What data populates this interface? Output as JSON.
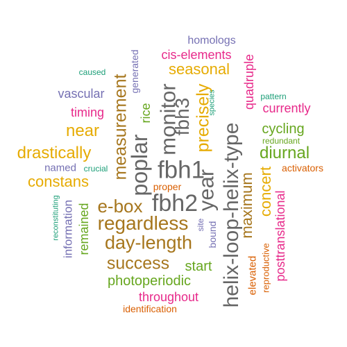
{
  "words": [
    {
      "text": "homologs",
      "color": "#7570b3",
      "size": "large"
    },
    {
      "text": "cis-elements",
      "color": "#e7298a",
      "size": "large"
    },
    {
      "text": "caused",
      "color": "#1b9e77",
      "size": "small"
    },
    {
      "text": "generated",
      "color": "#7570b3",
      "size": "medium"
    },
    {
      "text": "seasonal",
      "color": "#e6ab02",
      "size": "large"
    },
    {
      "text": "quadruple",
      "color": "#e7298a",
      "size": "large"
    },
    {
      "text": "vascular",
      "color": "#7570b3",
      "size": "large"
    },
    {
      "text": "measurement",
      "color": "#a6761d",
      "size": "xlarge"
    },
    {
      "text": "precisely",
      "color": "#e6ab02",
      "size": "xlarge"
    },
    {
      "text": "species",
      "color": "#1b9e77",
      "size": "small"
    },
    {
      "text": "pattern",
      "color": "#1b9e77",
      "size": "small"
    },
    {
      "text": "currently",
      "color": "#e7298a",
      "size": "large"
    },
    {
      "text": "rice",
      "color": "#66a61e",
      "size": "large"
    },
    {
      "text": "monitor",
      "color": "#666666",
      "size": "xlarge"
    },
    {
      "text": "timing",
      "color": "#e7298a",
      "size": "large"
    },
    {
      "text": "fbh3",
      "color": "#666666",
      "size": "xxlarge"
    },
    {
      "text": "helix-loop-helix-type",
      "color": "#666666",
      "size": "xxlarge"
    },
    {
      "text": "cycling",
      "color": "#66a61e",
      "size": "large"
    },
    {
      "text": "near",
      "color": "#e6ab02",
      "size": "xlarge"
    },
    {
      "text": "redundant",
      "color": "#66a61e",
      "size": "small"
    },
    {
      "text": "drastically",
      "color": "#e6ab02",
      "size": "xlarge"
    },
    {
      "text": "poplar",
      "color": "#666666",
      "size": "xxlarge"
    },
    {
      "text": "fbh1",
      "color": "#666666",
      "size": "xxlarge"
    },
    {
      "text": "year",
      "color": "#666666",
      "size": "xxlarge"
    },
    {
      "text": "diurnal",
      "color": "#66a61e",
      "size": "xlarge"
    },
    {
      "text": "named",
      "color": "#7570b3",
      "size": "medium"
    },
    {
      "text": "crucial",
      "color": "#1b9e77",
      "size": "small"
    },
    {
      "text": "concert",
      "color": "#e6ab02",
      "size": "xlarge"
    },
    {
      "text": "activators",
      "color": "#d95f02",
      "size": "medium"
    },
    {
      "text": "constans",
      "color": "#e6ab02",
      "size": "xlarge"
    },
    {
      "text": "proper",
      "color": "#d95f02",
      "size": "medium"
    },
    {
      "text": "maximum",
      "color": "#a6761d",
      "size": "xlarge"
    },
    {
      "text": "e-box",
      "color": "#a6761d",
      "size": "xlarge"
    },
    {
      "text": "fbh2",
      "color": "#666666",
      "size": "xxlarge"
    },
    {
      "text": "reconstituting",
      "color": "#1b9e77",
      "size": "small"
    },
    {
      "text": "regardless",
      "color": "#a6761d",
      "size": "xlarge"
    },
    {
      "text": "site",
      "color": "#7570b3",
      "size": "small"
    },
    {
      "text": "information",
      "color": "#7570b3",
      "size": "large"
    },
    {
      "text": "remained",
      "color": "#66a61e",
      "size": "large"
    },
    {
      "text": "bound",
      "color": "#7570b3",
      "size": "medium"
    },
    {
      "text": "posttranslational",
      "color": "#e7298a",
      "size": "large"
    },
    {
      "text": "day-length",
      "color": "#a6761d",
      "size": "xlarge"
    },
    {
      "text": "elevated",
      "color": "#d95f02",
      "size": "medium"
    },
    {
      "text": "reproductive",
      "color": "#d95f02",
      "size": "small"
    },
    {
      "text": "success",
      "color": "#a6761d",
      "size": "xlarge"
    },
    {
      "text": "start",
      "color": "#66a61e",
      "size": "large"
    },
    {
      "text": "photoperiodic",
      "color": "#66a61e",
      "size": "large"
    },
    {
      "text": "throughout",
      "color": "#e7298a",
      "size": "large"
    },
    {
      "text": "identification",
      "color": "#d95f02",
      "size": "medium"
    }
  ]
}
